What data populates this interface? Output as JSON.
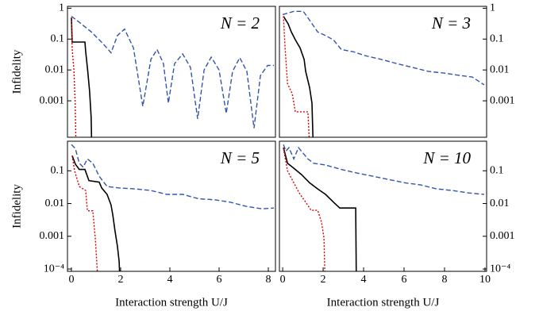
{
  "chart_data": [
    {
      "type": "line",
      "annotation": "N = 2",
      "ylabel": "Infidelity",
      "log_y": true,
      "y_axis_side": "left",
      "xlim": [
        -0.16,
        8.29
      ],
      "ylim": [
        6.6e-05,
        1.15
      ],
      "yticks": [
        1,
        0.1,
        0.01,
        0.001
      ],
      "series": [
        {
          "color": "#3355aa",
          "style": "dashed",
          "x": [
            0,
            0.32,
            0.81,
            1.29,
            1.61,
            1.87,
            2.16,
            2.52,
            2.9,
            3.23,
            3.48,
            3.74,
            3.94,
            4.19,
            4.52,
            4.84,
            5.13,
            5.39,
            5.68,
            6.0,
            6.29,
            6.55,
            6.84,
            7.13,
            7.42,
            7.68,
            7.97,
            8.23
          ],
          "values": [
            0.55,
            0.35,
            0.17,
            0.07,
            0.036,
            0.13,
            0.21,
            0.052,
            0.00066,
            0.022,
            0.046,
            0.016,
            0.00084,
            0.016,
            0.033,
            0.012,
            0.00026,
            0.01,
            0.026,
            0.01,
            0.00039,
            0.009,
            0.025,
            0.009,
            0.00013,
            0.0066,
            0.014,
            0.014
          ]
        },
        {
          "color": "#000000",
          "style": "solid",
          "x": [
            0,
            0.03,
            0.55,
            0.58,
            0.66,
            0.74,
            0.8,
            0.84
          ],
          "values": [
            0.5,
            0.08,
            0.08,
            0.04,
            0.01,
            0.002,
            0.0003,
            1e-05
          ]
        },
        {
          "color": "#dd0000",
          "style": "dotted",
          "x": [
            0,
            0.03,
            0.1,
            0.15,
            0.2
          ],
          "values": [
            0.5,
            0.05,
            0.01,
            0.001,
            1e-05
          ]
        }
      ]
    },
    {
      "type": "line",
      "annotation": "N = 3",
      "log_y": true,
      "y_axis_side": "right",
      "xlim": [
        -0.16,
        10.08
      ],
      "ylim": [
        6.6e-05,
        1.15
      ],
      "yticks": [
        1,
        0.1,
        0.01,
        0.001
      ],
      "series": [
        {
          "color": "#3355aa",
          "style": "dashed",
          "x": [
            0,
            0.55,
            1.02,
            1.33,
            1.73,
            2.12,
            2.51,
            2.9,
            3.49,
            4.08,
            4.86,
            5.65,
            6.43,
            7.22,
            8.0,
            8.78,
            9.37,
            9.96
          ],
          "values": [
            0.62,
            0.79,
            0.79,
            0.41,
            0.17,
            0.13,
            0.094,
            0.046,
            0.039,
            0.029,
            0.022,
            0.016,
            0.012,
            0.0089,
            0.0079,
            0.0066,
            0.0059,
            0.0033
          ]
        },
        {
          "color": "#000000",
          "style": "solid",
          "x": [
            0.04,
            0.27,
            0.43,
            0.63,
            0.86,
            1.06,
            1.14,
            1.33,
            1.45,
            1.53
          ],
          "values": [
            0.55,
            0.31,
            0.17,
            0.094,
            0.052,
            0.022,
            0.0089,
            0.0027,
            0.00084,
            1e-05
          ]
        },
        {
          "color": "#dd0000",
          "style": "dotted",
          "x": [
            0.04,
            0.12,
            0.24,
            0.47,
            0.63,
            1.25,
            1.37
          ],
          "values": [
            0.55,
            0.052,
            0.0036,
            0.0017,
            0.00044,
            0.00044,
            1e-05
          ]
        }
      ]
    },
    {
      "type": "line",
      "annotation": "N = 5",
      "ylabel": "Infidelity",
      "xlabel": "Interaction strength U/J",
      "log_y": true,
      "y_axis_side": "left",
      "xlim": [
        -0.16,
        8.29
      ],
      "ylim": [
        8.5e-05,
        0.8
      ],
      "yticks": [
        0.1,
        0.01,
        0.001,
        {
          "value": 0.0001,
          "label": "10⁻⁴"
        }
      ],
      "xticks": [
        0,
        2,
        4,
        6,
        8
      ],
      "series": [
        {
          "color": "#3355aa",
          "style": "dashed",
          "x": [
            0,
            0.16,
            0.32,
            0.48,
            0.65,
            0.87,
            1.13,
            1.45,
            1.94,
            2.58,
            3.23,
            3.87,
            4.52,
            5.16,
            5.81,
            6.45,
            7.1,
            7.74,
            8.23
          ],
          "values": [
            0.63,
            0.48,
            0.17,
            0.13,
            0.23,
            0.17,
            0.068,
            0.033,
            0.03,
            0.028,
            0.025,
            0.019,
            0.019,
            0.014,
            0.013,
            0.011,
            0.0082,
            0.0069,
            0.0073
          ]
        },
        {
          "color": "#000000",
          "style": "solid",
          "x": [
            0.03,
            0.16,
            0.32,
            0.55,
            0.71,
            1.13,
            1.23,
            1.45,
            1.61,
            1.68,
            1.77,
            1.87,
            1.94,
            2.0
          ],
          "values": [
            0.29,
            0.16,
            0.11,
            0.11,
            0.05,
            0.045,
            0.03,
            0.019,
            0.009,
            0.0045,
            0.0015,
            0.0005,
            0.00017,
            1e-05
          ]
        },
        {
          "color": "#dd0000",
          "style": "dotted",
          "x": [
            0.03,
            0.13,
            0.32,
            0.58,
            0.65,
            0.87,
            0.97,
            1.13
          ],
          "values": [
            0.29,
            0.1,
            0.033,
            0.025,
            0.006,
            0.006,
            0.0009,
            1e-05
          ]
        }
      ]
    },
    {
      "type": "line",
      "annotation": "N = 10",
      "xlabel": "Interaction strength U/J",
      "log_y": true,
      "y_axis_side": "right",
      "xlim": [
        -0.16,
        10.08
      ],
      "ylim": [
        8.5e-05,
        0.8
      ],
      "yticks": [
        0.1,
        0.01,
        0.001,
        {
          "value": 0.0001,
          "label": "10⁻⁴"
        }
      ],
      "xticks": [
        0,
        2,
        4,
        6,
        8,
        10
      ],
      "series": [
        {
          "color": "#3355aa",
          "style": "dashed",
          "x": [
            0.04,
            0.16,
            0.31,
            0.55,
            0.78,
            0.98,
            1.25,
            1.53,
            2.12,
            2.9,
            3.69,
            4.47,
            5.25,
            6.04,
            6.82,
            7.61,
            8.39,
            9.18,
            9.96
          ],
          "values": [
            0.63,
            0.4,
            0.51,
            0.23,
            0.51,
            0.36,
            0.23,
            0.17,
            0.15,
            0.11,
            0.085,
            0.068,
            0.054,
            0.043,
            0.037,
            0.028,
            0.025,
            0.021,
            0.019
          ]
        },
        {
          "color": "#000000",
          "style": "solid",
          "x": [
            0.04,
            0.24,
            0.55,
            0.94,
            1.33,
            1.73,
            2.12,
            2.51,
            2.82,
            3.29,
            3.61,
            3.65
          ],
          "values": [
            0.51,
            0.17,
            0.12,
            0.076,
            0.043,
            0.028,
            0.019,
            0.011,
            0.0073,
            0.0073,
            0.0073,
            1e-05
          ]
        },
        {
          "color": "#dd0000",
          "style": "dotted",
          "x": [
            0.04,
            0.24,
            0.55,
            0.86,
            1.14,
            1.41,
            1.73,
            1.92,
            2.04,
            2.12
          ],
          "values": [
            0.48,
            0.1,
            0.043,
            0.019,
            0.011,
            0.0062,
            0.0062,
            0.0027,
            0.0009,
            1e-05
          ]
        }
      ]
    }
  ]
}
